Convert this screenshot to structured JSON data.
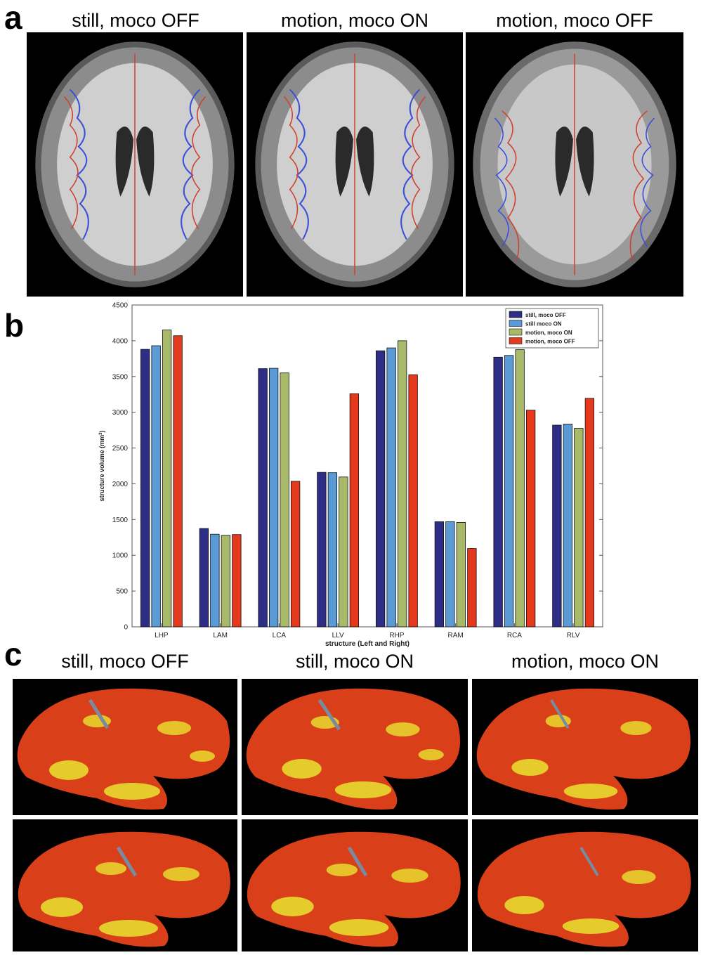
{
  "panel_a": {
    "letter": "a",
    "titles": [
      "still, moco OFF",
      "motion, moco ON",
      "motion, moco OFF"
    ]
  },
  "panel_b": {
    "letter": "b"
  },
  "panel_c": {
    "letter": "c",
    "titles": [
      "still, moco OFF",
      "still, moco ON",
      "motion, moco ON"
    ]
  },
  "colors": {
    "still_moco_off": "#2e2e86",
    "still_moco_on": "#5a9bd5",
    "motion_moco_on": "#a8b96a",
    "motion_moco_off": "#e5391e"
  },
  "chart_data": {
    "type": "bar",
    "title": "",
    "xlabel": "structure (Left and Right)",
    "ylabel": "structure volume (mm",
    "ylabel_sup": "3",
    "ylabel_end": ")",
    "ylim": [
      0,
      4500
    ],
    "yticks": [
      0,
      500,
      1000,
      1500,
      2000,
      2500,
      3000,
      3500,
      4000,
      4500
    ],
    "grid": false,
    "legend_position": "top-right",
    "categories": [
      "LHP",
      "LAM",
      "LCA",
      "LLV",
      "RHP",
      "RAM",
      "RCA",
      "RLV"
    ],
    "series": [
      {
        "name": "still, moco OFF",
        "color": "#2e2e86",
        "values": [
          3880,
          1375,
          3610,
          2160,
          3860,
          1470,
          3770,
          2820
        ]
      },
      {
        "name": "still moco ON",
        "color": "#5a9bd5",
        "values": [
          3930,
          1295,
          3615,
          2155,
          3900,
          1470,
          3795,
          2835
        ]
      },
      {
        "name": "motion, moco ON",
        "color": "#a8b96a",
        "values": [
          4150,
          1280,
          3550,
          2095,
          4000,
          1460,
          3875,
          2775
        ]
      },
      {
        "name": "motion, moco OFF",
        "color": "#e5391e",
        "values": [
          4070,
          1290,
          2035,
          3260,
          3525,
          1095,
          3030,
          3195
        ]
      }
    ]
  }
}
